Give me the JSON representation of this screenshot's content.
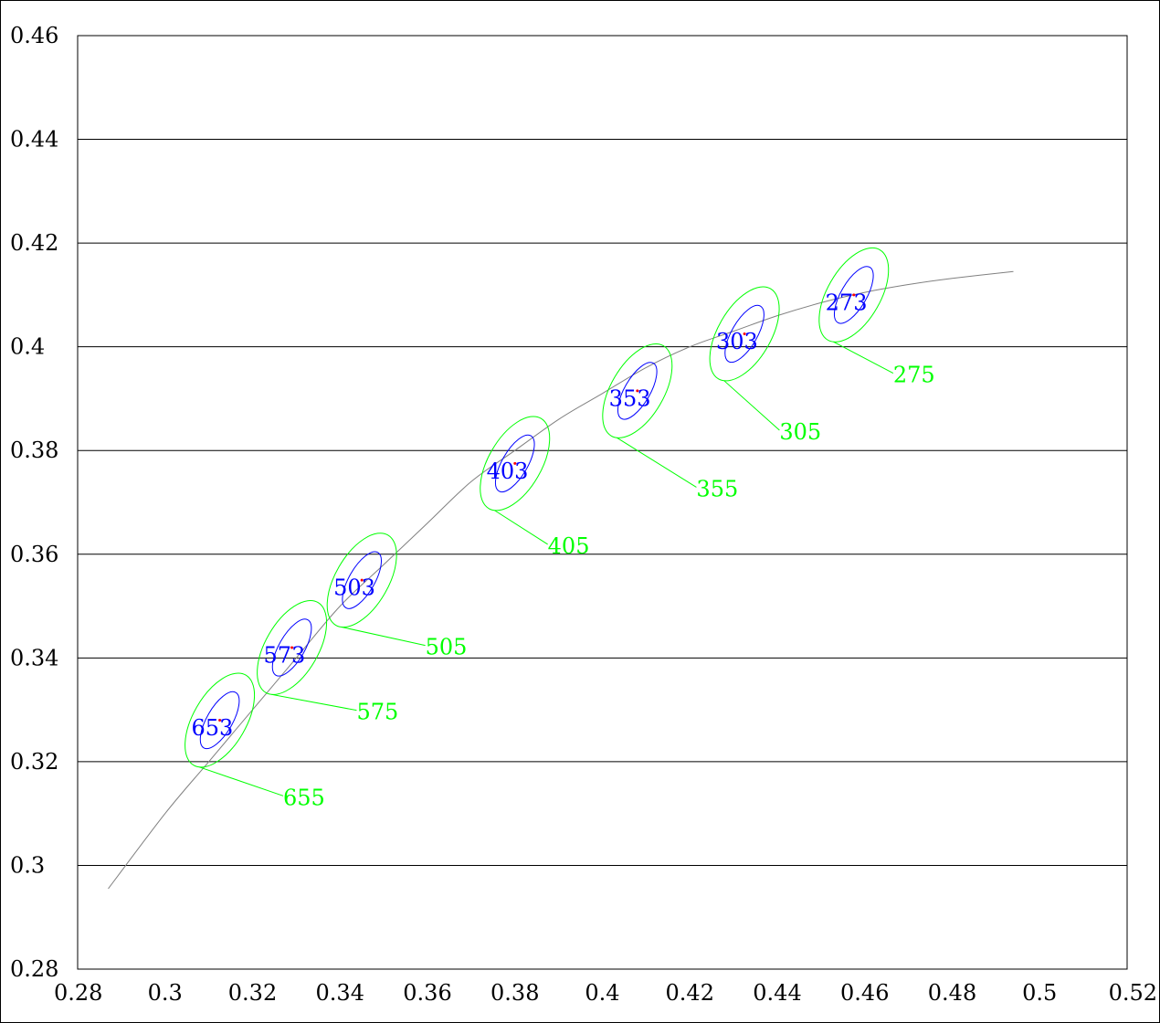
{
  "chart_data": {
    "type": "scatter",
    "title": "",
    "xlabel": "",
    "ylabel": "",
    "xlim": [
      0.28,
      0.52
    ],
    "ylim": [
      0.28,
      0.46
    ],
    "x_ticks": [
      "0.28",
      "0.3",
      "0.32",
      "0.34",
      "0.36",
      "0.38",
      "0.4",
      "0.42",
      "0.44",
      "0.46",
      "0.48",
      "0.5",
      "0.52"
    ],
    "y_ticks": [
      "0.46",
      "0.44",
      "0.42",
      "0.4",
      "0.38",
      "0.36",
      "0.34",
      "0.32",
      "0.3",
      "0.28"
    ],
    "grid": "horizontal",
    "curve": {
      "x": [
        0.287,
        0.3,
        0.31,
        0.32,
        0.33,
        0.34,
        0.35,
        0.36,
        0.37,
        0.38,
        0.39,
        0.4,
        0.41,
        0.42,
        0.43,
        0.44,
        0.45,
        0.46,
        0.47,
        0.48,
        0.494
      ],
      "y": [
        0.2955,
        0.31,
        0.32,
        0.33,
        0.34,
        0.35,
        0.358,
        0.366,
        0.374,
        0.38,
        0.386,
        0.391,
        0.396,
        0.4,
        0.403,
        0.406,
        0.4085,
        0.4105,
        0.412,
        0.4132,
        0.4145
      ]
    },
    "points": [
      {
        "x": 0.3125,
        "y": 0.328,
        "inner": "653",
        "outer": "655",
        "label_x": 0.306,
        "label_y": 0.3265,
        "callout_x": 0.327,
        "callout_y": 0.312
      },
      {
        "x": 0.329,
        "y": 0.342,
        "inner": "573",
        "outer": "575",
        "label_x": 0.3225,
        "label_y": 0.3405,
        "callout_x": 0.3438,
        "callout_y": 0.3285
      },
      {
        "x": 0.345,
        "y": 0.355,
        "inner": "503",
        "outer": "505",
        "label_x": 0.3385,
        "label_y": 0.3535,
        "callout_x": 0.3595,
        "callout_y": 0.341
      },
      {
        "x": 0.38,
        "y": 0.3775,
        "inner": "403",
        "outer": "405",
        "label_x": 0.3735,
        "label_y": 0.376,
        "callout_x": 0.3875,
        "callout_y": 0.3605
      },
      {
        "x": 0.408,
        "y": 0.3915,
        "inner": "353",
        "outer": "355",
        "label_x": 0.4015,
        "label_y": 0.39,
        "callout_x": 0.4215,
        "callout_y": 0.3715
      },
      {
        "x": 0.4325,
        "y": 0.4025,
        "inner": "303",
        "outer": "305",
        "label_x": 0.426,
        "label_y": 0.401,
        "callout_x": 0.4405,
        "callout_y": 0.3825
      },
      {
        "x": 0.4575,
        "y": 0.41,
        "inner": "273",
        "outer": "275",
        "label_x": 0.451,
        "label_y": 0.4085,
        "callout_x": 0.4665,
        "callout_y": 0.3935
      }
    ],
    "colors": {
      "inner_ellipse": "#0000ff",
      "outer_ellipse": "#00ff00",
      "center_point": "#ff0000",
      "curve": "#808080",
      "grid": "#000000"
    }
  }
}
